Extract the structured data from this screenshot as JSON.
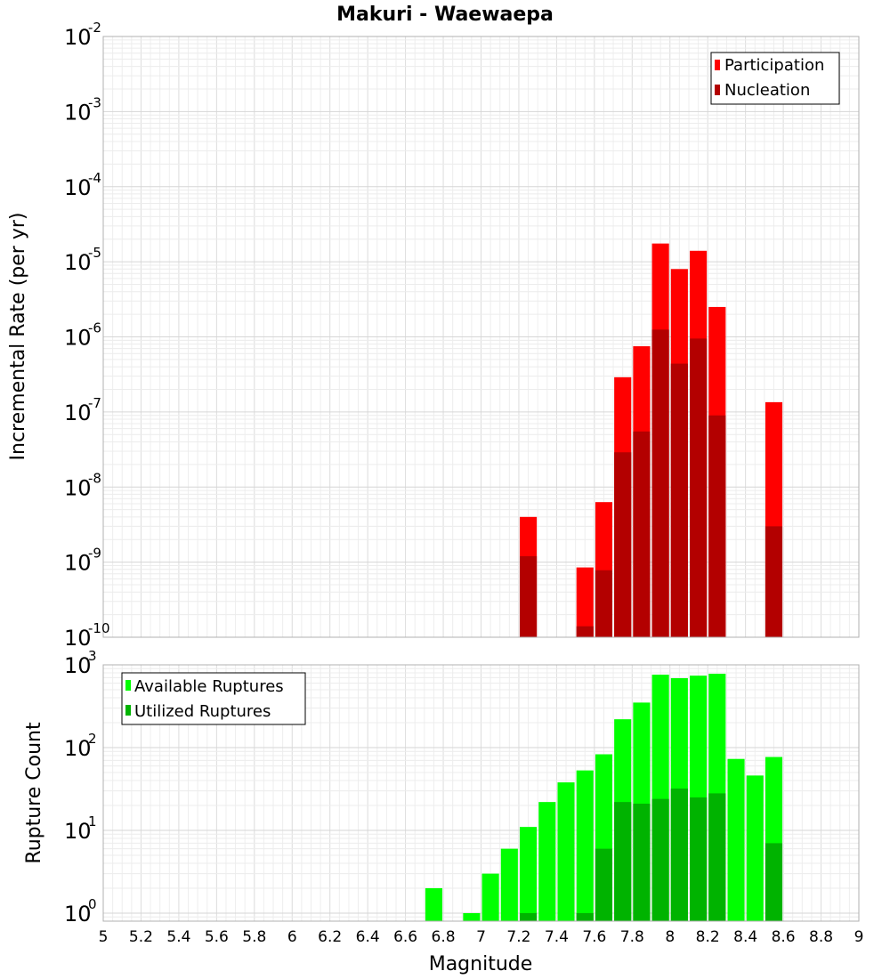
{
  "chart_data": [
    {
      "type": "bar",
      "title": "Makuri - Waewaepa",
      "xlabel": "Magnitude",
      "ylabel": "Incremental Rate (per yr)",
      "y_scale": "log",
      "ylim": [
        1e-10,
        0.01
      ],
      "xlim": [
        5,
        9
      ],
      "x_ticks": [
        "5",
        "5.2",
        "5.4",
        "5.6",
        "5.8",
        "6",
        "6.2",
        "6.4",
        "6.6",
        "6.8",
        "7",
        "7.2",
        "7.4",
        "7.6",
        "7.8",
        "8",
        "8.2",
        "8.4",
        "8.6",
        "8.8",
        "9"
      ],
      "y_ticks": [
        {
          "base": "10",
          "exp": "-10",
          "value": 1e-10
        },
        {
          "base": "10",
          "exp": "-9",
          "value": 1e-09
        },
        {
          "base": "10",
          "exp": "-8",
          "value": 1e-08
        },
        {
          "base": "10",
          "exp": "-7",
          "value": 1e-07
        },
        {
          "base": "10",
          "exp": "-6",
          "value": 1e-06
        },
        {
          "base": "10",
          "exp": "-5",
          "value": 1e-05
        },
        {
          "base": "10",
          "exp": "-4",
          "value": 0.0001
        },
        {
          "base": "10",
          "exp": "-3",
          "value": 0.001
        },
        {
          "base": "10",
          "exp": "-2",
          "value": 0.01
        }
      ],
      "grid": true,
      "legend_position": "top-right",
      "series": [
        {
          "name": "Participation",
          "color": "#ff0000",
          "x": [
            7.25,
            7.55,
            7.65,
            7.75,
            7.85,
            7.95,
            8.05,
            8.15,
            8.25,
            8.55
          ],
          "values": [
            4e-09,
            8.5e-10,
            6.3e-09,
            2.9e-07,
            7.5e-07,
            1.75e-05,
            8e-06,
            1.4e-05,
            2.5e-06,
            1.35e-07
          ]
        },
        {
          "name": "Nucleation",
          "color": "#b30000",
          "x": [
            7.25,
            7.55,
            7.65,
            7.75,
            7.85,
            7.95,
            8.05,
            8.15,
            8.25,
            8.55
          ],
          "values": [
            1.2e-09,
            1.4e-10,
            7.8e-10,
            2.9e-08,
            5.5e-08,
            1.25e-06,
            4.4e-07,
            9.5e-07,
            9e-08,
            3e-09
          ]
        }
      ]
    },
    {
      "type": "bar",
      "xlabel": "Magnitude",
      "ylabel": "Rupture Count",
      "y_scale": "log",
      "ylim": [
        0.8,
        1000
      ],
      "xlim": [
        5,
        9
      ],
      "y_ticks": [
        {
          "base": "10",
          "exp": "0",
          "value": 1
        },
        {
          "base": "10",
          "exp": "1",
          "value": 10
        },
        {
          "base": "10",
          "exp": "2",
          "value": 100
        },
        {
          "base": "10",
          "exp": "3",
          "value": 1000
        }
      ],
      "grid": true,
      "legend_position": "top-left",
      "series": [
        {
          "name": "Available Ruptures",
          "color": "#00ff00",
          "x": [
            6.75,
            6.95,
            7.05,
            7.15,
            7.25,
            7.35,
            7.45,
            7.55,
            7.65,
            7.75,
            7.85,
            7.95,
            8.05,
            8.15,
            8.25,
            8.35,
            8.45,
            8.55
          ],
          "values": [
            2,
            1,
            3,
            6,
            11,
            22,
            38,
            53,
            83,
            220,
            350,
            760,
            690,
            740,
            780,
            73,
            46,
            77
          ]
        },
        {
          "name": "Utilized Ruptures",
          "color": "#00b300",
          "x": [
            7.25,
            7.55,
            7.65,
            7.75,
            7.85,
            7.95,
            8.05,
            8.15,
            8.25,
            8.55
          ],
          "values": [
            1,
            1,
            6,
            22,
            21,
            24,
            32,
            25,
            28,
            7
          ]
        }
      ]
    }
  ]
}
